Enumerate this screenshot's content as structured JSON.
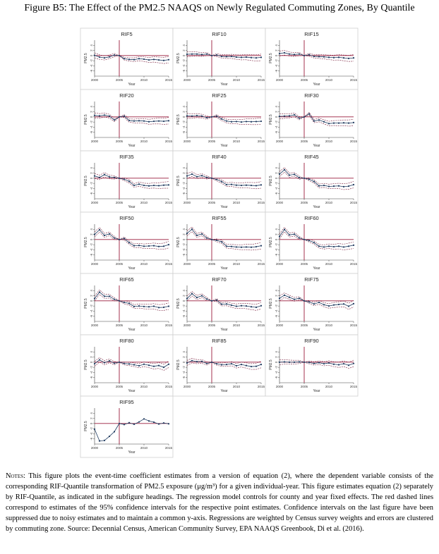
{
  "figure_title": "Figure B5: The Effect of the PM2.5 NAAQS on Newly Regulated Commuting Zones, By Quantile",
  "notes_label": "Notes:",
  "notes_text": "This figure plots the event-time coefficient estimates from a version of equation (2), where the dependent variable consists of the corresponding RIF-Quantile transformation of PM2.5 exposure (μg/m³) for a given individual-year. This figure estimates equation (2) separately by RIF-Quantile, as indicated in the subfigure headings. The regression model controls for county and year fixed effects. The red dashed lines correspond to estimates of the 95% confidence intervals for the respective point estimates. Confidence intervals on the last figure have been suppressed due to noisy estimates and to maintain a common y-axis. Regressions are weighted by Census survey weights and errors are clustered by commuting zone. Source: Decennial Census, American Community Survey, EPA NAAQS Greenbook, Di et al. (2016).",
  "colors": {
    "series": "#1f3a5f",
    "ci": "#7a1f3d",
    "ref": "#9b1c3c",
    "border": "#cfcfcf"
  },
  "chart_data": [
    {
      "type": "line",
      "title": "RIF5",
      "xlabel": "Year",
      "ylabel": "PM2.5",
      "xticks": [
        2000,
        2005,
        2010,
        2015
      ],
      "yticks": [
        -6,
        -4,
        -2,
        0,
        2,
        4
      ],
      "ylim": [
        -8,
        6
      ],
      "x": [
        2000,
        2001,
        2002,
        2003,
        2004,
        2005,
        2006,
        2007,
        2008,
        2009,
        2010,
        2011,
        2012,
        2013,
        2014,
        2015
      ],
      "series": [
        {
          "name": "",
          "values": [
            0.1,
            -0.6,
            -0.9,
            -0.5,
            0.2,
            0,
            -1.2,
            -1.5,
            -1.6,
            -1.2,
            -1.4,
            -1.7,
            -1.5,
            -1.7,
            -1.9,
            -1.6
          ]
        }
      ],
      "ci": true
    },
    {
      "type": "line",
      "title": "RIF10",
      "xlabel": "Year",
      "ylabel": "PM2.5",
      "xticks": [
        2000,
        2005,
        2010,
        2015
      ],
      "yticks": [
        -6,
        -4,
        -2,
        0,
        2,
        4
      ],
      "ylim": [
        -8,
        6
      ],
      "x": [
        2000,
        2001,
        2002,
        2003,
        2004,
        2005,
        2006,
        2007,
        2008,
        2009,
        2010,
        2011,
        2012,
        2013,
        2014,
        2015
      ],
      "series": [
        {
          "name": "",
          "values": [
            0.5,
            0.6,
            0.6,
            0.4,
            0.6,
            0,
            0.2,
            -0.3,
            -0.4,
            -0.3,
            -0.6,
            -0.7,
            -0.6,
            -0.8,
            -0.9,
            -0.7
          ]
        }
      ],
      "ci": true
    },
    {
      "type": "line",
      "title": "RIF15",
      "xlabel": "Year",
      "ylabel": "PM2.5",
      "xticks": [
        2000,
        2005,
        2010,
        2015
      ],
      "yticks": [
        -6,
        -4,
        -2,
        0,
        2,
        4
      ],
      "ylim": [
        -8,
        6
      ],
      "x": [
        2000,
        2001,
        2002,
        2003,
        2004,
        2005,
        2006,
        2007,
        2008,
        2009,
        2010,
        2011,
        2012,
        2013,
        2014,
        2015
      ],
      "series": [
        {
          "name": "",
          "values": [
            0.8,
            1.1,
            0.6,
            0.4,
            0.6,
            0,
            0.3,
            -0.3,
            -0.4,
            -0.5,
            -0.7,
            -0.8,
            -0.7,
            -0.9,
            -1.1,
            -0.9
          ]
        }
      ],
      "ci": true
    },
    {
      "type": "line",
      "title": "RIF20",
      "xlabel": "Year",
      "ylabel": "PM2.5",
      "xticks": [
        2000,
        2005,
        2010,
        2015
      ],
      "yticks": [
        -6,
        -4,
        -2,
        0,
        2,
        4
      ],
      "ylim": [
        -8,
        6
      ],
      "x": [
        2000,
        2001,
        2002,
        2003,
        2004,
        2005,
        2006,
        2007,
        2008,
        2009,
        2010,
        2011,
        2012,
        2013,
        2014,
        2015
      ],
      "series": [
        {
          "name": "",
          "values": [
            0.6,
            0.4,
            0.7,
            0.3,
            -1.2,
            0,
            0.3,
            -1.4,
            -1.6,
            -1.5,
            -1.6,
            -1.9,
            -1.7,
            -1.6,
            -1.7,
            -1.5
          ]
        }
      ],
      "ci": true
    },
    {
      "type": "line",
      "title": "RIF25",
      "xlabel": "Year",
      "ylabel": "PM2.5",
      "xticks": [
        2000,
        2005,
        2010,
        2015
      ],
      "yticks": [
        -6,
        -4,
        -2,
        0,
        2,
        4
      ],
      "ylim": [
        -8,
        6
      ],
      "x": [
        2000,
        2001,
        2002,
        2003,
        2004,
        2005,
        2006,
        2007,
        2008,
        2009,
        2010,
        2011,
        2012,
        2013,
        2014,
        2015
      ],
      "series": [
        {
          "name": "",
          "values": [
            0.4,
            0.3,
            0.5,
            0.3,
            -0.3,
            0,
            0.3,
            -0.8,
            -1.6,
            -1.9,
            -1.8,
            -2.0,
            -1.8,
            -1.9,
            -1.8,
            -1.7
          ]
        }
      ],
      "ci": true
    },
    {
      "type": "line",
      "title": "RIF30",
      "xlabel": "Year",
      "ylabel": "PM2.5",
      "xticks": [
        2000,
        2005,
        2010,
        2015
      ],
      "yticks": [
        -6,
        -4,
        -2,
        0,
        2,
        4
      ],
      "ylim": [
        -8,
        6
      ],
      "x": [
        2000,
        2001,
        2002,
        2003,
        2004,
        2005,
        2006,
        2007,
        2008,
        2009,
        2010,
        2011,
        2012,
        2013,
        2014,
        2015
      ],
      "series": [
        {
          "name": "",
          "values": [
            0.2,
            0.3,
            0.4,
            0.8,
            -0.5,
            0,
            1.2,
            -1.6,
            -1.2,
            -1.9,
            -2.6,
            -2.4,
            -2.4,
            -2.3,
            -2.4,
            -2.2
          ]
        }
      ],
      "ci": true
    },
    {
      "type": "line",
      "title": "RIF35",
      "xlabel": "Year",
      "ylabel": "PM2.5",
      "xticks": [
        2000,
        2005,
        2010,
        2015
      ],
      "yticks": [
        -6,
        -4,
        -2,
        0,
        2,
        4
      ],
      "ylim": [
        -8,
        6
      ],
      "x": [
        2000,
        2001,
        2002,
        2003,
        2004,
        2005,
        2006,
        2007,
        2008,
        2009,
        2010,
        2011,
        2012,
        2013,
        2014,
        2015
      ],
      "series": [
        {
          "name": "",
          "values": [
            0.9,
            0.3,
            1.4,
            0.5,
            0.3,
            0,
            -0.4,
            -1.2,
            -2.8,
            -2.3,
            -2.8,
            -3.0,
            -2.8,
            -2.9,
            -2.7,
            -2.6
          ]
        }
      ],
      "ci": true
    },
    {
      "type": "line",
      "title": "RIF40",
      "xlabel": "Year",
      "ylabel": "PM2.5",
      "xticks": [
        2000,
        2005,
        2010,
        2015
      ],
      "yticks": [
        -6,
        -4,
        -2,
        0,
        2,
        4
      ],
      "ylim": [
        -8,
        6
      ],
      "x": [
        2000,
        2001,
        2002,
        2003,
        2004,
        2005,
        2006,
        2007,
        2008,
        2009,
        2010,
        2011,
        2012,
        2013,
        2014,
        2015
      ],
      "series": [
        {
          "name": "",
          "values": [
            0.9,
            1.6,
            0.6,
            1.0,
            0.3,
            0,
            -0.5,
            -1.3,
            -2.5,
            -2.4,
            -2.7,
            -2.8,
            -2.7,
            -2.8,
            -2.9,
            -2.6
          ]
        }
      ],
      "ci": true
    },
    {
      "type": "line",
      "title": "RIF45",
      "xlabel": "Year",
      "ylabel": "PM2.5",
      "xticks": [
        2000,
        2005,
        2010,
        2015
      ],
      "yticks": [
        -6,
        -4,
        -2,
        0,
        2,
        4
      ],
      "ylim": [
        -8,
        6
      ],
      "x": [
        2000,
        2001,
        2002,
        2003,
        2004,
        2005,
        2006,
        2007,
        2008,
        2009,
        2010,
        2011,
        2012,
        2013,
        2014,
        2015
      ],
      "series": [
        {
          "name": "",
          "values": [
            1.6,
            3.3,
            1.2,
            1.5,
            0.2,
            0,
            -0.4,
            -1.3,
            -3.0,
            -2.8,
            -3.2,
            -3.1,
            -3.0,
            -3.3,
            -3.1,
            -2.5
          ]
        }
      ],
      "ci": true
    },
    {
      "type": "line",
      "title": "RIF50",
      "xlabel": "Year",
      "ylabel": "PM2.5",
      "xticks": [
        2000,
        2005,
        2010,
        2015
      ],
      "yticks": [
        -6,
        -4,
        -2,
        0,
        2,
        4
      ],
      "ylim": [
        -8,
        6
      ],
      "x": [
        2000,
        2001,
        2002,
        2003,
        2004,
        2005,
        2006,
        2007,
        2008,
        2009,
        2010,
        2011,
        2012,
        2013,
        2014,
        2015
      ],
      "series": [
        {
          "name": "",
          "values": [
            2.0,
            3.8,
            1.6,
            2.2,
            0.6,
            0,
            0.4,
            -1.2,
            -2.4,
            -2.3,
            -2.6,
            -2.5,
            -2.4,
            -2.7,
            -2.6,
            -2.0
          ]
        }
      ],
      "ci": true
    },
    {
      "type": "line",
      "title": "RIF55",
      "xlabel": "Year",
      "ylabel": "PM2.5",
      "xticks": [
        2000,
        2005,
        2010,
        2015
      ],
      "yticks": [
        -6,
        -4,
        -2,
        0,
        2,
        4
      ],
      "ylim": [
        -8,
        6
      ],
      "x": [
        2000,
        2001,
        2002,
        2003,
        2004,
        2005,
        2006,
        2007,
        2008,
        2009,
        2010,
        2011,
        2012,
        2013,
        2014,
        2015
      ],
      "series": [
        {
          "name": "",
          "values": [
            2.4,
            4.0,
            1.6,
            2.2,
            0.6,
            0,
            -0.3,
            -0.9,
            -2.6,
            -2.7,
            -2.9,
            -3.0,
            -2.9,
            -3.0,
            -2.8,
            -2.4
          ]
        }
      ],
      "ci": true
    },
    {
      "type": "line",
      "title": "RIF60",
      "xlabel": "Year",
      "ylabel": "PM2.5",
      "xticks": [
        2000,
        2005,
        2010,
        2015
      ],
      "yticks": [
        -6,
        -4,
        -2,
        0,
        2,
        4
      ],
      "ylim": [
        -8,
        6
      ],
      "x": [
        2000,
        2001,
        2002,
        2003,
        2004,
        2005,
        2006,
        2007,
        2008,
        2009,
        2010,
        2011,
        2012,
        2013,
        2014,
        2015
      ],
      "series": [
        {
          "name": "",
          "values": [
            1.2,
            3.9,
            1.8,
            2.1,
            0.6,
            0,
            -0.4,
            -1.2,
            -2.6,
            -2.9,
            -2.6,
            -2.8,
            -2.6,
            -2.9,
            -2.6,
            -2.2
          ]
        }
      ],
      "ci": true
    },
    {
      "type": "line",
      "title": "RIF65",
      "xlabel": "Year",
      "ylabel": "PM2.5",
      "xticks": [
        2000,
        2005,
        2010,
        2015
      ],
      "yticks": [
        -6,
        -4,
        -2,
        0,
        2,
        4
      ],
      "ylim": [
        -8,
        6
      ],
      "x": [
        2000,
        2001,
        2002,
        2003,
        2004,
        2005,
        2006,
        2007,
        2008,
        2009,
        2010,
        2011,
        2012,
        2013,
        2014,
        2015
      ],
      "series": [
        {
          "name": "",
          "values": [
            0.9,
            3.4,
            1.8,
            1.8,
            0.6,
            0,
            -0.6,
            -1.0,
            -2.2,
            -2.0,
            -2.2,
            -2.3,
            -2.1,
            -2.6,
            -2.5,
            -2.1
          ]
        }
      ],
      "ci": true
    },
    {
      "type": "line",
      "title": "RIF70",
      "xlabel": "Year",
      "ylabel": "PM2.5",
      "xticks": [
        2000,
        2005,
        2010,
        2015
      ],
      "yticks": [
        -6,
        -4,
        -2,
        0,
        2,
        4
      ],
      "ylim": [
        -8,
        6
      ],
      "x": [
        2000,
        2001,
        2002,
        2003,
        2004,
        2005,
        2006,
        2007,
        2008,
        2009,
        2010,
        2011,
        2012,
        2013,
        2014,
        2015
      ],
      "series": [
        {
          "name": "",
          "values": [
            0.9,
            2.8,
            1.3,
            2.0,
            0.7,
            0,
            0.3,
            -1.3,
            -1.2,
            -1.7,
            -2.1,
            -1.9,
            -2.0,
            -2.3,
            -2.5,
            -1.9
          ]
        }
      ],
      "ci": true
    },
    {
      "type": "line",
      "title": "RIF75",
      "xlabel": "Year",
      "ylabel": "PM2.5",
      "xticks": [
        2000,
        2005,
        2010,
        2015
      ],
      "yticks": [
        -6,
        -4,
        -2,
        0,
        2,
        4
      ],
      "ylim": [
        -8,
        6
      ],
      "x": [
        2000,
        2001,
        2002,
        2003,
        2004,
        2005,
        2006,
        2007,
        2008,
        2009,
        2010,
        2011,
        2012,
        2013,
        2014,
        2015
      ],
      "series": [
        {
          "name": "",
          "values": [
            1.0,
            2.2,
            1.4,
            0.6,
            1.0,
            0,
            -0.4,
            -1.2,
            -0.6,
            -1.5,
            -2.0,
            -1.6,
            -1.4,
            -1.2,
            -2.1,
            -1.1
          ]
        }
      ],
      "ci": true
    },
    {
      "type": "line",
      "title": "RIF80",
      "xlabel": "Year",
      "ylabel": "PM2.5",
      "xticks": [
        2000,
        2005,
        2010,
        2015
      ],
      "yticks": [
        -6,
        -4,
        -2,
        0,
        2,
        4
      ],
      "ylim": [
        -8,
        6
      ],
      "x": [
        2000,
        2001,
        2002,
        2003,
        2004,
        2005,
        2006,
        2007,
        2008,
        2009,
        2010,
        2011,
        2012,
        2013,
        2014,
        2015
      ],
      "series": [
        {
          "name": "",
          "values": [
            -0.6,
            0.9,
            -0.2,
            0.5,
            -0.4,
            0,
            -0.5,
            -0.7,
            -1.0,
            -1.4,
            -0.8,
            -1.2,
            -1.6,
            -1.3,
            -2.0,
            -0.8
          ]
        }
      ],
      "ci": true
    },
    {
      "type": "line",
      "title": "RIF85",
      "xlabel": "Year",
      "ylabel": "PM2.5",
      "xticks": [
        2000,
        2005,
        2010,
        2015
      ],
      "yticks": [
        -6,
        -4,
        -2,
        0,
        2,
        4
      ],
      "ylim": [
        -8,
        6
      ],
      "x": [
        2000,
        2001,
        2002,
        2003,
        2004,
        2005,
        2006,
        2007,
        2008,
        2009,
        2010,
        2011,
        2012,
        2013,
        2014,
        2015
      ],
      "series": [
        {
          "name": "",
          "values": [
            -0.3,
            0.6,
            0.2,
            0.3,
            -0.5,
            0,
            -0.6,
            -1.0,
            -0.9,
            -0.6,
            -1.4,
            -0.9,
            -1.3,
            -1.7,
            -1.6,
            -0.9
          ]
        }
      ],
      "ci": true
    },
    {
      "type": "line",
      "title": "RIF90",
      "xlabel": "Year",
      "ylabel": "PM2.5",
      "xticks": [
        2000,
        2005,
        2010,
        2015
      ],
      "yticks": [
        -6,
        -4,
        -2,
        0,
        2,
        4
      ],
      "ylim": [
        -8,
        6
      ],
      "x": [
        2000,
        2001,
        2002,
        2003,
        2004,
        2005,
        2006,
        2007,
        2008,
        2009,
        2010,
        2011,
        2012,
        2013,
        2014,
        2015
      ],
      "series": [
        {
          "name": "",
          "values": [
            0.0,
            0.1,
            0.0,
            0.0,
            0.1,
            0,
            -0.1,
            -0.5,
            -0.2,
            -0.6,
            -0.3,
            -0.8,
            -1.0,
            -0.6,
            -1.2,
            -0.5
          ]
        }
      ],
      "ci": true
    },
    {
      "type": "line",
      "title": "RIF95",
      "xlabel": "Year",
      "ylabel": "PM2.5",
      "xticks": [
        2000,
        2005,
        2010,
        2015
      ],
      "yticks": [
        -6,
        -4,
        -2,
        0,
        2,
        4
      ],
      "ylim": [
        -8,
        6
      ],
      "x": [
        2000,
        2001,
        2002,
        2003,
        2004,
        2005,
        2006,
        2007,
        2008,
        2009,
        2010,
        2011,
        2012,
        2013,
        2014,
        2015
      ],
      "series": [
        {
          "name": "",
          "values": [
            -2.2,
            -6.8,
            -6.6,
            -5.0,
            -3.2,
            0,
            -0.4,
            0.3,
            -0.3,
            0.6,
            1.8,
            1.0,
            0.5,
            -0.2,
            0.2,
            -0.1
          ]
        }
      ],
      "ci": false
    }
  ]
}
